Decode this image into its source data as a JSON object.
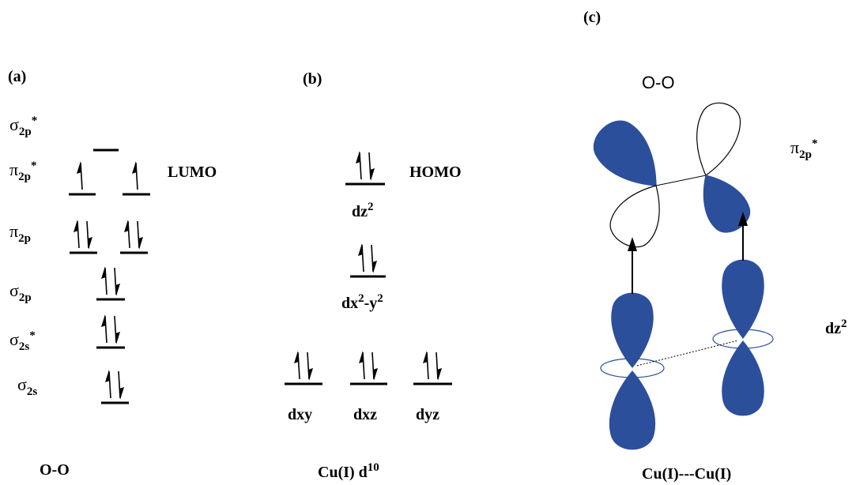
{
  "panels": {
    "a": {
      "tag": "(a)",
      "levels": [
        {
          "symbol": "σ",
          "sub": "2p",
          "sup": "*"
        },
        {
          "symbol": "π",
          "sub": "2p",
          "sup": "*"
        },
        {
          "symbol": "π",
          "sub": "2p"
        },
        {
          "symbol": "σ",
          "sub": "2p"
        },
        {
          "symbol": "σ",
          "sub": "2s",
          "sup": "*"
        },
        {
          "symbol": "σ",
          "sub": "2s"
        }
      ],
      "lumo": "LUMO",
      "caption": "O-O"
    },
    "b": {
      "tag": "(b)",
      "homo": "HOMO",
      "orbitals": [
        {
          "text": "dz",
          "sup": "2"
        },
        {
          "text": "dx",
          "sup": "2",
          "text2": "-y",
          "sup2": "2"
        },
        {
          "text": "dxy"
        },
        {
          "text": "dxz"
        },
        {
          "text": "dyz"
        }
      ],
      "caption": {
        "text": "Cu(I) d",
        "sup": "10"
      }
    },
    "c": {
      "tag": "(c)",
      "molecule": "O-O",
      "orbital_top": {
        "symbol": "π",
        "sub": "2p",
        "sup": "*"
      },
      "orbital_bottom": {
        "text": "dz",
        "sup": "2"
      },
      "caption": "Cu(I)---Cu(I)"
    }
  }
}
